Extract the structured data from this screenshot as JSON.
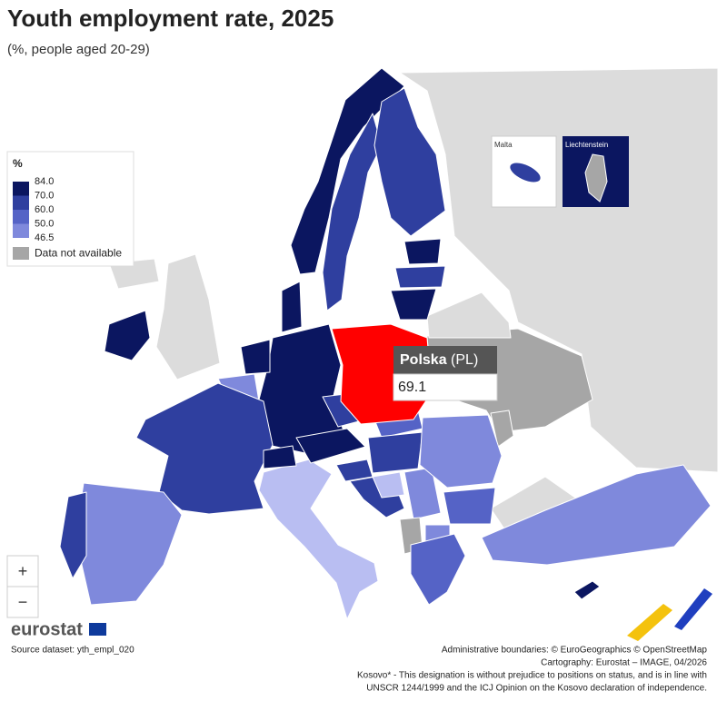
{
  "header": {
    "title": "Youth employment rate, 2025",
    "subtitle": "(%, people aged 20-29)"
  },
  "legend": {
    "title": "%",
    "items": [
      {
        "label": "84.0",
        "color": "#0b1660"
      },
      {
        "label": "70.0",
        "color": "#2f3f9f"
      },
      {
        "label": "60.0",
        "color": "#5563c6"
      },
      {
        "label": "50.0",
        "color": "#7f89dc"
      },
      {
        "label": "46.5",
        "color": "#b9bef2"
      }
    ],
    "not_available": {
      "label": "Data not available",
      "color": "#a6a6a6"
    }
  },
  "insets": [
    {
      "label": "Malta"
    },
    {
      "label": "Liechtenstein"
    }
  ],
  "tooltip": {
    "name": "Polska",
    "code": "(PL)",
    "value": "69.1"
  },
  "zoom": {
    "in": "+",
    "out": "−"
  },
  "logo": {
    "text": "eurostat"
  },
  "footer": {
    "source": "Source dataset: yth_empl_020",
    "credits": [
      "Administrative boundaries: © EuroGeographics © OpenStreetMap",
      "Cartography: Eurostat – IMAGE, 04/2026",
      "Kosovo* - This designation is without prejudice to positions on status, and is in line with",
      "UNSCR 1244/1999 and the ICJ Opinion on the Kosovo declaration of independence."
    ]
  }
}
